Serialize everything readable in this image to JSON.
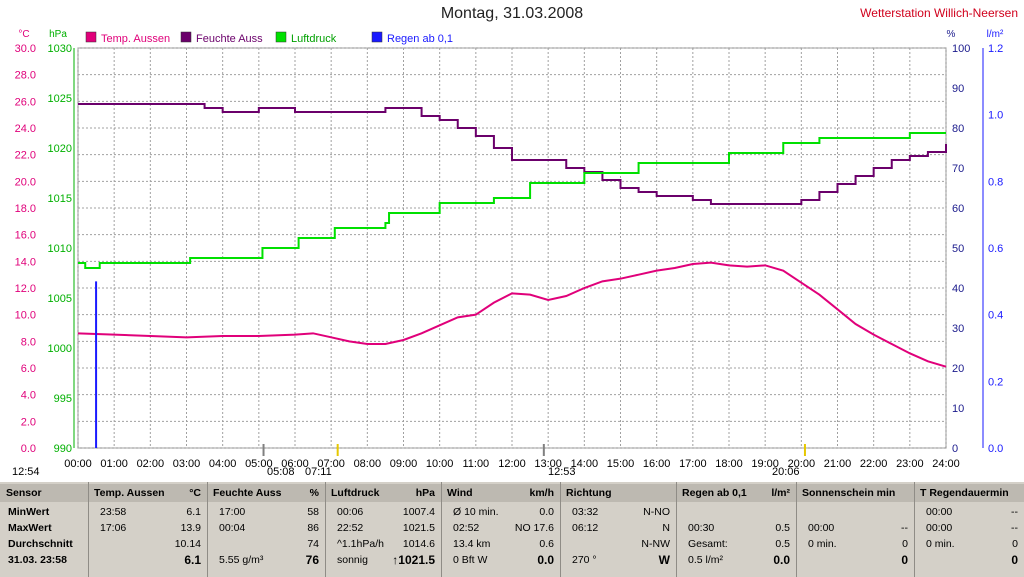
{
  "title": "Montag, 31.03.2008",
  "station": "Wetterstation Willich-Neersen",
  "axes": {
    "temp": {
      "unit": "°C",
      "ticks": [
        "30.0",
        "28.0",
        "26.0",
        "24.0",
        "22.0",
        "20.0",
        "18.0",
        "16.0",
        "14.0",
        "12.0",
        "10.0",
        "8.0",
        "6.0",
        "4.0",
        "2.0",
        "0.0"
      ],
      "ylim": [
        0,
        30
      ],
      "color": "#e0007a"
    },
    "press": {
      "unit": "hPa",
      "ticks": [
        "1030",
        "1025",
        "1020",
        "1015",
        "1010",
        "1005",
        "1000",
        "995",
        "990"
      ],
      "ylim": [
        990,
        1030
      ],
      "color": "#00b000"
    },
    "hum": {
      "unit": "%",
      "ticks": [
        "100",
        "90",
        "80",
        "70",
        "60",
        "50",
        "40",
        "30",
        "20",
        "10",
        "0"
      ],
      "ylim": [
        0,
        100
      ],
      "color": "#1a1a8c"
    },
    "rain": {
      "unit": "l/m²",
      "ticks": [
        "1.2",
        "1.0",
        "0.8",
        "0.6",
        "0.4",
        "0.2",
        "0.0"
      ],
      "ylim": [
        0,
        1.2
      ],
      "color": "#1a1aff"
    }
  },
  "x_ticks": [
    "00:00",
    "01:00",
    "02:00",
    "03:00",
    "04:00",
    "05:00",
    "06:00",
    "07:00",
    "08:00",
    "09:00",
    "10:00",
    "11:00",
    "12:00",
    "13:00",
    "14:00",
    "15:00",
    "16:00",
    "17:00",
    "18:00",
    "19:00",
    "20:00",
    "21:00",
    "22:00",
    "23:00",
    "24:00"
  ],
  "time_markers": [
    "12:54",
    "05:08",
    "07:11",
    "12:53",
    "20:06"
  ],
  "chart_data": {
    "type": "line",
    "x_unit": "hour",
    "grid": true,
    "legend": "top-left",
    "series": [
      {
        "name": "Temp. Aussen",
        "axis": "temp",
        "color": "#e0007a",
        "x": [
          0,
          1,
          2,
          3,
          4,
          5,
          6,
          6.5,
          7,
          7.5,
          8,
          8.5,
          9,
          9.5,
          10,
          10.5,
          11,
          11.5,
          12,
          12.5,
          13,
          13.5,
          14,
          14.5,
          15,
          15.5,
          16,
          16.5,
          17,
          17.5,
          18,
          18.5,
          19,
          19.5,
          20,
          20.5,
          21,
          21.5,
          22,
          22.5,
          23,
          23.5,
          24
        ],
        "values": [
          8.6,
          8.5,
          8.4,
          8.3,
          8.4,
          8.4,
          8.5,
          8.6,
          8.3,
          8.0,
          7.8,
          7.8,
          8.1,
          8.6,
          9.2,
          9.8,
          10.0,
          10.9,
          11.6,
          11.5,
          11.1,
          11.4,
          12.0,
          12.5,
          12.7,
          13.0,
          13.3,
          13.5,
          13.8,
          13.9,
          13.7,
          13.6,
          13.7,
          13.3,
          12.4,
          11.5,
          10.4,
          9.3,
          8.5,
          7.8,
          7.1,
          6.5,
          6.1
        ]
      },
      {
        "name": "Feuchte Auss",
        "axis": "hum",
        "color": "#6b006b",
        "x": [
          0,
          1,
          2,
          3,
          3.5,
          4,
          5,
          6,
          7,
          8,
          8.5,
          9,
          9.5,
          10,
          10.5,
          11,
          11.5,
          12,
          12.5,
          13,
          13.5,
          14,
          14.5,
          15,
          15.5,
          16,
          16.5,
          17,
          17.5,
          18,
          18.5,
          19,
          19.5,
          20,
          20.5,
          21,
          21.5,
          22,
          22.5,
          23,
          23.5,
          24
        ],
        "values": [
          86,
          86,
          86,
          86,
          85,
          84,
          85,
          84,
          84,
          84,
          85,
          85,
          83,
          82,
          80,
          78,
          75,
          72,
          72,
          72,
          70,
          69,
          67,
          65,
          64,
          63,
          63,
          62,
          61,
          61,
          61,
          61,
          61,
          62,
          64,
          66,
          68,
          70,
          72,
          73,
          74,
          76
        ]
      },
      {
        "name": "Luftdruck",
        "axis": "press",
        "color": "#00e000",
        "x": [
          0,
          0.2,
          0.4,
          0.6,
          1,
          2,
          3,
          3.1,
          4,
          5,
          5.1,
          6,
          6.1,
          7,
          7.1,
          8,
          8.5,
          8.6,
          9,
          9.5,
          10,
          10.5,
          11,
          11.5,
          12,
          12.5,
          13,
          13.5,
          14,
          15,
          15.5,
          16,
          16.5,
          17,
          17.5,
          18,
          19,
          19.5,
          20,
          20.5,
          21,
          22,
          22.5,
          23,
          23.5,
          24
        ],
        "values": [
          1008.5,
          1008.0,
          1008.0,
          1008.5,
          1008.5,
          1008.5,
          1008.5,
          1009.0,
          1009.0,
          1009.0,
          1010.0,
          1010.0,
          1011.0,
          1011.0,
          1012.0,
          1012.0,
          1012.5,
          1013.5,
          1013.5,
          1013.5,
          1014.5,
          1014.5,
          1014.5,
          1015.0,
          1015.0,
          1016.5,
          1016.5,
          1016.5,
          1017.5,
          1017.5,
          1018.5,
          1018.5,
          1018.5,
          1018.5,
          1018.5,
          1019.5,
          1019.5,
          1020.5,
          1020.5,
          1021.0,
          1021.0,
          1021.0,
          1021.0,
          1021.5,
          1021.5,
          1021.5
        ]
      },
      {
        "name": "Regen ab 0,1",
        "axis": "rain",
        "color": "#1a1aff",
        "x": [
          0.5
        ],
        "values": [
          0.5
        ]
      }
    ]
  },
  "table": {
    "columns": [
      {
        "header": "Sensor",
        "unit": "",
        "rows": [
          [
            "MinWert",
            ""
          ],
          [
            "MaxWert",
            ""
          ],
          [
            "Durchschnitt",
            ""
          ],
          [
            "31.03.  23:58",
            ""
          ]
        ]
      },
      {
        "header": "Temp. Aussen",
        "unit": "°C",
        "rows": [
          [
            "23:58",
            "6.1"
          ],
          [
            "17:06",
            "13.9"
          ],
          [
            "",
            "10.14"
          ],
          [
            "",
            "6.1"
          ]
        ]
      },
      {
        "header": "Feuchte Auss",
        "unit": "%",
        "rows": [
          [
            "17:00",
            "58"
          ],
          [
            "00:04",
            "86"
          ],
          [
            "",
            "74"
          ],
          [
            "5.55 g/m³",
            "76"
          ]
        ]
      },
      {
        "header": "Luftdruck",
        "unit": "hPa",
        "rows": [
          [
            "00:06",
            "1007.4"
          ],
          [
            "22:52",
            "1021.5"
          ],
          [
            "^1.1hPa/h",
            "1014.6"
          ],
          [
            "sonnig",
            "↑1021.5"
          ]
        ]
      },
      {
        "header": "Wind",
        "unit": "km/h",
        "rows": [
          [
            "Ø 10 min.",
            "0.0"
          ],
          [
            "02:52",
            "NO 17.6"
          ],
          [
            "13.4 km",
            "0.6"
          ],
          [
            "0 Bft W",
            "0.0"
          ]
        ]
      },
      {
        "header": "Richtung",
        "unit": "",
        "rows": [
          [
            "03:32",
            "N-NO"
          ],
          [
            "06:12",
            "N"
          ],
          [
            "",
            "N-NW"
          ],
          [
            "270 °",
            "W"
          ]
        ]
      },
      {
        "header": "Regen ab 0,1",
        "unit": "l/m²",
        "rows": [
          [
            "",
            ""
          ],
          [
            "00:30",
            "0.5"
          ],
          [
            "Gesamt:",
            "0.5"
          ],
          [
            "0.5 l/m²",
            "0.0"
          ]
        ]
      },
      {
        "header": "Sonnenschein min",
        "unit": "",
        "rows": [
          [
            "",
            ""
          ],
          [
            "00:00",
            "--"
          ],
          [
            "0 min.",
            "0"
          ],
          [
            "",
            "0"
          ]
        ]
      },
      {
        "header": "T Regendauermin",
        "unit": "",
        "rows": [
          [
            "00:00",
            "--"
          ],
          [
            "00:00",
            "--"
          ],
          [
            "0 min.",
            "0"
          ],
          [
            "",
            "0"
          ]
        ]
      }
    ]
  }
}
